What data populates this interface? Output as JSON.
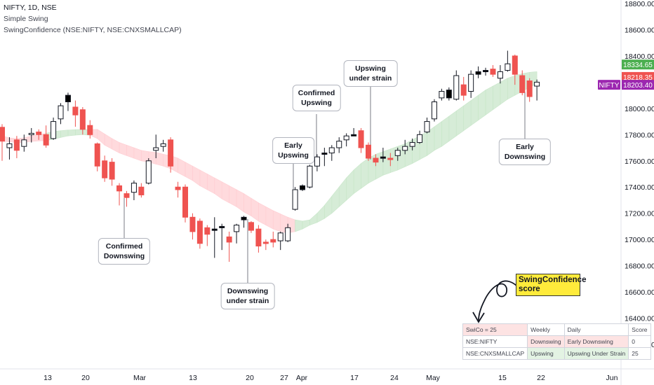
{
  "header": {
    "symbol_line": "NIFTY, 1D, NSE",
    "indicator_1": "Simple Swing",
    "indicator_2": "SwingConfidence (NSE:NIFTY, NSE:CNXSMALLCAP)"
  },
  "annotations": {
    "confirmed_downswing": [
      "Confirmed",
      "Downswing"
    ],
    "downswing_under_strain": [
      "Downswing",
      "under strain"
    ],
    "early_upswing": [
      "Early",
      "Upswing"
    ],
    "confirmed_upswing": [
      "Confirmed",
      "Upswing"
    ],
    "upswing_under_strain": [
      "Upswing",
      "under strain"
    ],
    "early_downswing": [
      "Early",
      "Downswing"
    ],
    "swingconfidence_label": "SwingConfidence score"
  },
  "score_table": {
    "headers": [
      "SwiCo = 25",
      "Weekly",
      "Daily",
      "Score"
    ],
    "rows": [
      [
        "NSE:NIFTY",
        "Downswing",
        "Early Downswing",
        "0"
      ],
      [
        "NSE:CNXSMALLCAP",
        "Upswing",
        "Upswing Under Strain",
        "25"
      ]
    ]
  },
  "colors": {
    "up_candle": "#ffffff",
    "down_candle": "#ef5350",
    "doji": "#000000",
    "band_up": "#c8e6c9",
    "band_down": "#ffcdd2",
    "tag_1": "#4caf50",
    "tag_2": "#ef5350",
    "tag_3": "#9c27b0"
  },
  "chart_data": {
    "type": "candlestick",
    "ylim": [
      16000,
      18800
    ],
    "y_ticks": [
      "16200.00",
      "16400.00",
      "16600.00",
      "16800.00",
      "17000.00",
      "17200.00",
      "17400.00",
      "17600.00",
      "17800.00",
      "18000.00",
      "18200.00",
      "18400.00",
      "18600.00",
      "18800.00"
    ],
    "x_ticks": [
      "13",
      "20",
      "Mar",
      "13",
      "20",
      "27",
      "Apr",
      "17",
      "24",
      "May",
      "15",
      "22",
      "Jun"
    ],
    "price_tags": [
      {
        "label": "",
        "value": "18334.65",
        "color": "#4caf50"
      },
      {
        "label": "",
        "value": "18218.35",
        "color": "#ef5350"
      },
      {
        "label": "NIFTY",
        "value": "18203.40",
        "color": "#9c27b0"
      }
    ],
    "candles": [
      {
        "o": 17856,
        "h": 17880,
        "l": 17600,
        "c": 17750,
        "col": "down"
      },
      {
        "o": 17700,
        "h": 17780,
        "l": 17610,
        "c": 17730,
        "col": "up"
      },
      {
        "o": 17760,
        "h": 17790,
        "l": 17620,
        "c": 17680,
        "col": "down"
      },
      {
        "o": 17710,
        "h": 17800,
        "l": 17670,
        "c": 17760,
        "col": "up"
      },
      {
        "o": 17810,
        "h": 17850,
        "l": 17740,
        "c": 17810,
        "col": "up"
      },
      {
        "o": 17820,
        "h": 17840,
        "l": 17760,
        "c": 17800,
        "col": "down"
      },
      {
        "o": 17800,
        "h": 17870,
        "l": 17700,
        "c": 17720,
        "col": "down"
      },
      {
        "o": 17770,
        "h": 17930,
        "l": 17760,
        "c": 17900,
        "col": "up"
      },
      {
        "o": 17920,
        "h": 18040,
        "l": 17880,
        "c": 18020,
        "col": "up"
      },
      {
        "o": 18050,
        "h": 18120,
        "l": 17980,
        "c": 18100,
        "col": "doji"
      },
      {
        "o": 18010,
        "h": 18060,
        "l": 17860,
        "c": 17950,
        "col": "down"
      },
      {
        "o": 17990,
        "h": 18010,
        "l": 17800,
        "c": 17840,
        "col": "down"
      },
      {
        "o": 17870,
        "h": 17910,
        "l": 17770,
        "c": 17800,
        "col": "down"
      },
      {
        "o": 17730,
        "h": 17740,
        "l": 17520,
        "c": 17560,
        "col": "down"
      },
      {
        "o": 17600,
        "h": 17640,
        "l": 17440,
        "c": 17470,
        "col": "down"
      },
      {
        "o": 17590,
        "h": 17620,
        "l": 17410,
        "c": 17460,
        "col": "down"
      },
      {
        "o": 17410,
        "h": 17430,
        "l": 17260,
        "c": 17370,
        "col": "down"
      },
      {
        "o": 17350,
        "h": 17370,
        "l": 17250,
        "c": 17320,
        "col": "down"
      },
      {
        "o": 17360,
        "h": 17450,
        "l": 17300,
        "c": 17430,
        "col": "up"
      },
      {
        "o": 17400,
        "h": 17430,
        "l": 17320,
        "c": 17340,
        "col": "down"
      },
      {
        "o": 17430,
        "h": 17620,
        "l": 17420,
        "c": 17600,
        "col": "up"
      },
      {
        "o": 17680,
        "h": 17800,
        "l": 17620,
        "c": 17700,
        "col": "up"
      },
      {
        "o": 17710,
        "h": 17760,
        "l": 17670,
        "c": 17730,
        "col": "up"
      },
      {
        "o": 17760,
        "h": 17780,
        "l": 17510,
        "c": 17560,
        "col": "down"
      },
      {
        "o": 17400,
        "h": 17440,
        "l": 17320,
        "c": 17380,
        "col": "down"
      },
      {
        "o": 17400,
        "h": 17420,
        "l": 17130,
        "c": 17170,
        "col": "down"
      },
      {
        "o": 17170,
        "h": 17200,
        "l": 17000,
        "c": 17060,
        "col": "down"
      },
      {
        "o": 17140,
        "h": 17160,
        "l": 16930,
        "c": 16970,
        "col": "down"
      },
      {
        "o": 17090,
        "h": 17110,
        "l": 16950,
        "c": 17040,
        "col": "down"
      },
      {
        "o": 17080,
        "h": 17170,
        "l": 16860,
        "c": 17080,
        "col": "doji"
      },
      {
        "o": 17100,
        "h": 17120,
        "l": 16920,
        "c": 17100,
        "col": "doji"
      },
      {
        "o": 17020,
        "h": 17060,
        "l": 16830,
        "c": 16980,
        "col": "down"
      },
      {
        "o": 17060,
        "h": 17120,
        "l": 16970,
        "c": 17110,
        "col": "up"
      },
      {
        "o": 17150,
        "h": 17180,
        "l": 17090,
        "c": 17170,
        "col": "doji"
      },
      {
        "o": 17130,
        "h": 17140,
        "l": 17050,
        "c": 17070,
        "col": "down"
      },
      {
        "o": 17080,
        "h": 17110,
        "l": 16900,
        "c": 16950,
        "col": "down"
      },
      {
        "o": 16980,
        "h": 17000,
        "l": 16920,
        "c": 16980,
        "col": "down"
      },
      {
        "o": 16980,
        "h": 17060,
        "l": 16940,
        "c": 17000,
        "col": "down"
      },
      {
        "o": 16990,
        "h": 17060,
        "l": 16920,
        "c": 17050,
        "col": "up"
      },
      {
        "o": 16990,
        "h": 17120,
        "l": 16980,
        "c": 17090,
        "col": "up"
      },
      {
        "o": 17230,
        "h": 17400,
        "l": 17220,
        "c": 17380,
        "col": "up"
      },
      {
        "o": 17410,
        "h": 17420,
        "l": 17370,
        "c": 17380,
        "col": "doji"
      },
      {
        "o": 17400,
        "h": 17570,
        "l": 17390,
        "c": 17560,
        "col": "up"
      },
      {
        "o": 17560,
        "h": 17650,
        "l": 17520,
        "c": 17630,
        "col": "up"
      },
      {
        "o": 17650,
        "h": 17700,
        "l": 17560,
        "c": 17660,
        "col": "doji"
      },
      {
        "o": 17660,
        "h": 17720,
        "l": 17600,
        "c": 17700,
        "col": "up"
      },
      {
        "o": 17700,
        "h": 17780,
        "l": 17660,
        "c": 17750,
        "col": "up"
      },
      {
        "o": 17760,
        "h": 17810,
        "l": 17710,
        "c": 17790,
        "col": "up"
      },
      {
        "o": 17800,
        "h": 17850,
        "l": 17790,
        "c": 17800,
        "col": "doji"
      },
      {
        "o": 17830,
        "h": 17850,
        "l": 17660,
        "c": 17700,
        "col": "down"
      },
      {
        "o": 17720,
        "h": 17740,
        "l": 17600,
        "c": 17620,
        "col": "down"
      },
      {
        "o": 17620,
        "h": 17650,
        "l": 17560,
        "c": 17590,
        "col": "down"
      },
      {
        "o": 17630,
        "h": 17700,
        "l": 17590,
        "c": 17630,
        "col": "doji"
      },
      {
        "o": 17620,
        "h": 17660,
        "l": 17560,
        "c": 17610,
        "col": "down"
      },
      {
        "o": 17640,
        "h": 17700,
        "l": 17600,
        "c": 17680,
        "col": "up"
      },
      {
        "o": 17680,
        "h": 17760,
        "l": 17650,
        "c": 17710,
        "col": "up"
      },
      {
        "o": 17710,
        "h": 17770,
        "l": 17680,
        "c": 17740,
        "col": "up"
      },
      {
        "o": 17740,
        "h": 17830,
        "l": 17730,
        "c": 17800,
        "col": "up"
      },
      {
        "o": 17820,
        "h": 17930,
        "l": 17810,
        "c": 17900,
        "col": "up"
      },
      {
        "o": 17920,
        "h": 18070,
        "l": 17900,
        "c": 18050,
        "col": "up"
      },
      {
        "o": 18080,
        "h": 18150,
        "l": 18060,
        "c": 18130,
        "col": "up"
      },
      {
        "o": 18140,
        "h": 18160,
        "l": 18060,
        "c": 18080,
        "col": "doji"
      },
      {
        "o": 18070,
        "h": 18290,
        "l": 18060,
        "c": 18250,
        "col": "up"
      },
      {
        "o": 18180,
        "h": 18240,
        "l": 18060,
        "c": 18100,
        "col": "down"
      },
      {
        "o": 18130,
        "h": 18290,
        "l": 18080,
        "c": 18260,
        "col": "up"
      },
      {
        "o": 18280,
        "h": 18320,
        "l": 18230,
        "c": 18260,
        "col": "doji"
      },
      {
        "o": 18290,
        "h": 18310,
        "l": 18250,
        "c": 18290,
        "col": "doji"
      },
      {
        "o": 18300,
        "h": 18330,
        "l": 18240,
        "c": 18260,
        "col": "down"
      },
      {
        "o": 18230,
        "h": 18330,
        "l": 18190,
        "c": 18280,
        "col": "up"
      },
      {
        "o": 18290,
        "h": 18440,
        "l": 18280,
        "c": 18340,
        "col": "up"
      },
      {
        "o": 18400,
        "h": 18410,
        "l": 18180,
        "c": 18260,
        "col": "down"
      },
      {
        "o": 18250,
        "h": 18290,
        "l": 18100,
        "c": 18120,
        "col": "down"
      },
      {
        "o": 18210,
        "h": 18230,
        "l": 18050,
        "c": 18090,
        "col": "down"
      },
      {
        "o": 18170,
        "h": 18220,
        "l": 18060,
        "c": 18200,
        "col": "up"
      }
    ],
    "band": [
      [
        17790,
        17750,
        "down"
      ],
      [
        17775,
        17745,
        "down"
      ],
      [
        17770,
        17740,
        "down"
      ],
      [
        17775,
        17740,
        "down"
      ],
      [
        17790,
        17748,
        "down"
      ],
      [
        17800,
        17752,
        "down"
      ],
      [
        17810,
        17755,
        "down"
      ],
      [
        17825,
        17765,
        "up"
      ],
      [
        17830,
        17778,
        "up"
      ],
      [
        17835,
        17790,
        "up"
      ],
      [
        17838,
        17796,
        "up"
      ],
      [
        17840,
        17800,
        "up"
      ],
      [
        17838,
        17795,
        "up"
      ],
      [
        17840,
        17770,
        "down"
      ],
      [
        17805,
        17720,
        "down"
      ],
      [
        17770,
        17690,
        "down"
      ],
      [
        17740,
        17660,
        "down"
      ],
      [
        17720,
        17640,
        "down"
      ],
      [
        17700,
        17620,
        "down"
      ],
      [
        17680,
        17600,
        "down"
      ],
      [
        17670,
        17590,
        "down"
      ],
      [
        17665,
        17575,
        "down"
      ],
      [
        17650,
        17560,
        "down"
      ],
      [
        17640,
        17540,
        "down"
      ],
      [
        17620,
        17510,
        "down"
      ],
      [
        17590,
        17480,
        "down"
      ],
      [
        17560,
        17450,
        "down"
      ],
      [
        17530,
        17410,
        "down"
      ],
      [
        17500,
        17380,
        "down"
      ],
      [
        17470,
        17350,
        "down"
      ],
      [
        17440,
        17310,
        "down"
      ],
      [
        17410,
        17280,
        "down"
      ],
      [
        17380,
        17250,
        "down"
      ],
      [
        17350,
        17210,
        "down"
      ],
      [
        17315,
        17180,
        "down"
      ],
      [
        17280,
        17140,
        "down"
      ],
      [
        17250,
        17110,
        "down"
      ],
      [
        17220,
        17080,
        "down"
      ],
      [
        17195,
        17060,
        "down"
      ],
      [
        17170,
        17050,
        "down"
      ],
      [
        17150,
        17060,
        "down"
      ],
      [
        17140,
        17080,
        "up"
      ],
      [
        17150,
        17110,
        "up"
      ],
      [
        17200,
        17130,
        "up"
      ],
      [
        17260,
        17160,
        "up"
      ],
      [
        17330,
        17200,
        "up"
      ],
      [
        17400,
        17250,
        "up"
      ],
      [
        17470,
        17300,
        "up"
      ],
      [
        17530,
        17350,
        "up"
      ],
      [
        17580,
        17390,
        "up"
      ],
      [
        17620,
        17430,
        "up"
      ],
      [
        17650,
        17460,
        "up"
      ],
      [
        17670,
        17490,
        "up"
      ],
      [
        17690,
        17510,
        "up"
      ],
      [
        17710,
        17530,
        "up"
      ],
      [
        17730,
        17555,
        "up"
      ],
      [
        17760,
        17580,
        "up"
      ],
      [
        17790,
        17610,
        "up"
      ],
      [
        17820,
        17640,
        "up"
      ],
      [
        17860,
        17680,
        "up"
      ],
      [
        17900,
        17710,
        "up"
      ],
      [
        17940,
        17750,
        "up"
      ],
      [
        17980,
        17790,
        "up"
      ],
      [
        18020,
        17830,
        "up"
      ],
      [
        18060,
        17870,
        "up"
      ],
      [
        18100,
        17910,
        "up"
      ],
      [
        18140,
        17950,
        "up"
      ],
      [
        18170,
        17990,
        "up"
      ],
      [
        18200,
        18030,
        "up"
      ],
      [
        18230,
        18070,
        "up"
      ],
      [
        18250,
        18100,
        "up"
      ],
      [
        18265,
        18130,
        "up"
      ],
      [
        18275,
        18160,
        "up"
      ],
      [
        18280,
        18190,
        "up"
      ]
    ]
  }
}
